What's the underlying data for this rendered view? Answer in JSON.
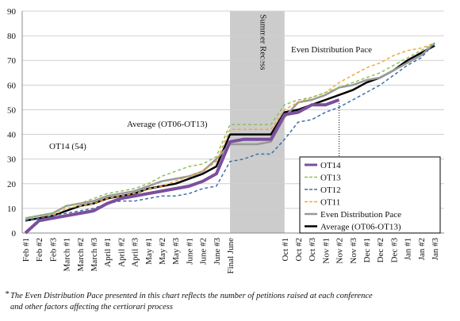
{
  "chart_data": {
    "type": "line",
    "categories": [
      "Feb #1",
      "Feb #2",
      "Feb #3",
      "March #1",
      "March #2",
      "March #3",
      "April #1",
      "April #2",
      "April #3",
      "May #1",
      "May #2",
      "May #3",
      "June #1",
      "June #2",
      "June #3",
      "Final June",
      null,
      null,
      null,
      "Oct #1",
      "Oct #2",
      "Oct #3",
      "Nov #1",
      "Nov #2",
      "Nov #3",
      "Dec #1",
      "Dec #2",
      "Dec #3",
      "Jan #1",
      "Jan #2",
      "Jan #3"
    ],
    "category_colors": [
      "#111111",
      "#111111",
      "#111111",
      "#111111",
      "#111111",
      "#111111",
      "#111111",
      "#111111",
      "#111111",
      "#111111",
      "#111111",
      "#111111",
      "#111111",
      "#111111",
      "#111111",
      "#111111",
      null,
      null,
      null,
      "#111111",
      "#111111",
      "#111111",
      "#111111",
      "#111111",
      "#999999",
      "#999999",
      "#999999",
      "#999999",
      "#999999",
      "#999999",
      "#999999"
    ],
    "ylim": [
      0,
      90
    ],
    "yticks": [
      0,
      10,
      20,
      30,
      40,
      50,
      60,
      70,
      80,
      90
    ],
    "grid": true,
    "legend": "lower right",
    "shaded_region": {
      "label": "Summer Recess",
      "from": "Final June",
      "to": "Oct #1",
      "color": "#cccccc"
    },
    "series": [
      {
        "name": "OT14",
        "color": "#7b4f9d",
        "style": "solid",
        "width": 4,
        "values": [
          0,
          5,
          6,
          7,
          8,
          9,
          12,
          14,
          15,
          16,
          17,
          18,
          19,
          21,
          24,
          37,
          38,
          38,
          38,
          48,
          49,
          52,
          52,
          54,
          null,
          null,
          null,
          null,
          null,
          null,
          null
        ]
      },
      {
        "name": "OT13",
        "color": "#8fbf5a",
        "style": "dashed",
        "width": 1.5,
        "values": [
          6,
          7,
          8,
          11,
          12,
          14,
          16,
          17,
          18,
          20,
          23,
          25,
          27,
          28,
          31,
          44,
          44,
          44,
          44,
          52,
          54,
          55,
          57,
          59,
          61,
          63,
          65,
          68,
          71,
          74,
          77
        ]
      },
      {
        "name": "OT12",
        "color": "#3d6fa8",
        "style": "dashed",
        "width": 1.5,
        "values": [
          5,
          6,
          7,
          8,
          9,
          10,
          12,
          13,
          13,
          14,
          15,
          15,
          16,
          18,
          19,
          29,
          30,
          32,
          32,
          38,
          45,
          46,
          49,
          51,
          54,
          57,
          60,
          64,
          68,
          71,
          77
        ]
      },
      {
        "name": "OT11",
        "color": "#f0a93c",
        "style": "dashed",
        "width": 1.5,
        "values": [
          6,
          7,
          7,
          10,
          11,
          12,
          14,
          15,
          16,
          18,
          19,
          21,
          23,
          25,
          29,
          42,
          42,
          42,
          42,
          50,
          53,
          55,
          57,
          61,
          64,
          67,
          69,
          72,
          74,
          75,
          77
        ]
      },
      {
        "name": "Even Distribution Pace",
        "color": "#999999",
        "style": "solid",
        "width": 2.5,
        "values": [
          6,
          7,
          8,
          11,
          12,
          13,
          15,
          16,
          17,
          19,
          21,
          22,
          23,
          25,
          30,
          36,
          36,
          36,
          37,
          47,
          53,
          54,
          56,
          59,
          60,
          62,
          63,
          66,
          69,
          72,
          77
        ]
      },
      {
        "name": "Average (OT06-OT13)",
        "color": "#000000",
        "style": "solid",
        "width": 2.5,
        "values": [
          5,
          6,
          7,
          9,
          11,
          12,
          14,
          15,
          16,
          18,
          19,
          20,
          22,
          24,
          27,
          40,
          40,
          40,
          40,
          49,
          50,
          52,
          54,
          56,
          58,
          61,
          63,
          66,
          70,
          73,
          76
        ]
      }
    ],
    "annotations": [
      "Even Distribution Pace",
      "Average (OT06-OT13)",
      "OT14 (54)"
    ],
    "footnote": [
      "The Even Distribution Pace presented in this chart reflects the number of petitions raised at each conference",
      "and other factors affecting the certiorari process"
    ]
  }
}
